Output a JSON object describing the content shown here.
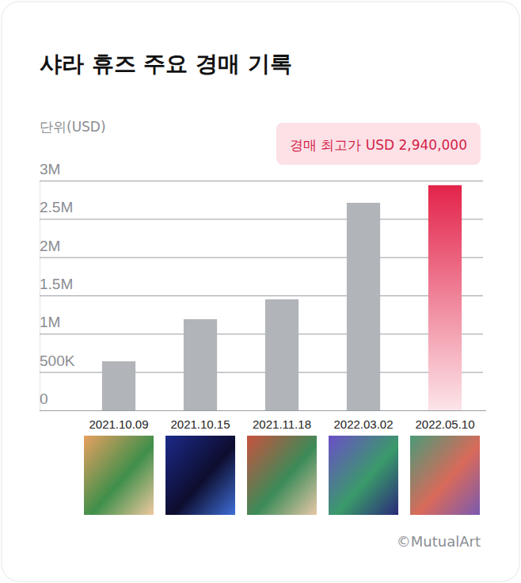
{
  "chart_data": {
    "type": "bar",
    "title": "샤라 휴즈 주요 경매 기록",
    "y_label": "단위(USD)",
    "annotations": [
      "경매 최고가 USD 2,940,000"
    ],
    "source": "©MutualArt",
    "categories": [
      "2021.10.09",
      "2021.10.15",
      "2021.11.18",
      "2022.03.02",
      "2022.05.10"
    ],
    "values": [
      640000,
      1190000,
      1450000,
      2710000,
      2940000
    ],
    "colors": [
      "#b1b4b9",
      "#b1b4b9",
      "#b1b4b9",
      "#b1b4b9",
      "#e3234a"
    ],
    "ylim": [
      0,
      3000000
    ],
    "yticks": [
      0,
      {
        "value": 500000,
        "label": "500K"
      },
      {
        "value": 1000000,
        "label": "1M"
      },
      {
        "value": 1500000,
        "label": "1.5M"
      },
      {
        "value": 2000000,
        "label": "2M"
      },
      {
        "value": 2500000,
        "label": "2.5M"
      },
      {
        "value": 3000000,
        "label": "3M"
      }
    ],
    "grid": true
  }
}
